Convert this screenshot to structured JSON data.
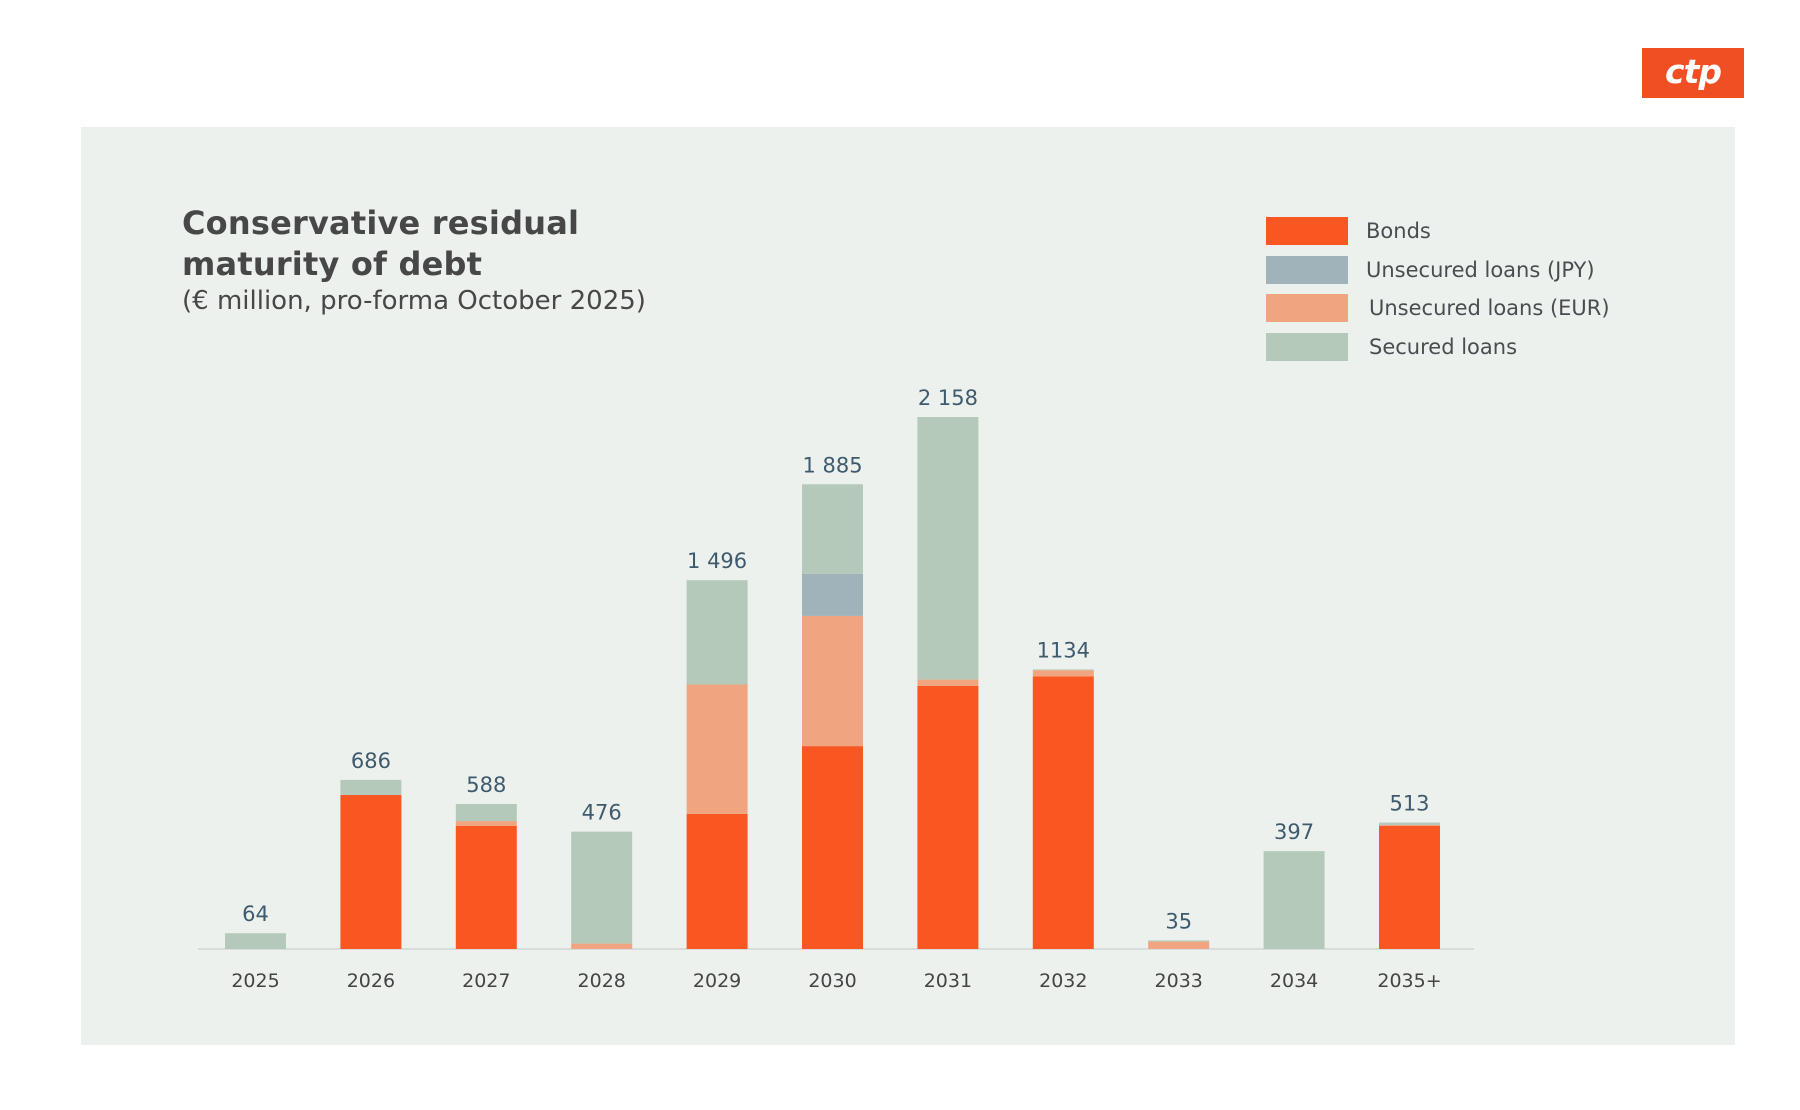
{
  "logo": {
    "text": "ctp",
    "color": "#F04E23"
  },
  "chart_data": {
    "type": "bar",
    "stacked": true,
    "title": "Conservative residual maturity of debt",
    "title_lines": [
      "Conservative residual",
      "maturity of debt"
    ],
    "subtitle": "(€ million, pro-forma October 2025)",
    "xlabel": "",
    "ylabel": "",
    "ylim": [
      0,
      2200
    ],
    "grid": false,
    "legend_position": "top-right",
    "categories": [
      "2025",
      "2026",
      "2027",
      "2028",
      "2029",
      "2030",
      "2031",
      "2032",
      "2033",
      "2034",
      "2035+"
    ],
    "totals_labels": [
      "64",
      "686",
      "588",
      "476",
      "1 496",
      "1 885",
      "2 158",
      "1134",
      "35",
      "397",
      "513"
    ],
    "totals": [
      64,
      686,
      588,
      476,
      1496,
      1885,
      2158,
      1134,
      35,
      397,
      513
    ],
    "series": [
      {
        "name": "Bonds",
        "color": "#F95721",
        "values": [
          0,
          625,
          499,
          0,
          548,
          823,
          1067,
          1106,
          0,
          0,
          499
        ]
      },
      {
        "name": "Unsecured loans (EUR)",
        "color": "#F0A47F",
        "values": [
          0,
          0,
          20,
          22,
          525,
          528,
          26,
          25,
          30,
          0,
          4
        ]
      },
      {
        "name": "Unsecured loans (JPY)",
        "color": "#A1B3BA",
        "values": [
          0,
          0,
          0,
          0,
          0,
          171,
          0,
          0,
          0,
          0,
          0
        ]
      },
      {
        "name": "Secured loans",
        "color": "#B4C9B9",
        "values": [
          64,
          61,
          69,
          454,
          423,
          363,
          1065,
          3,
          5,
          397,
          10
        ]
      }
    ],
    "legend": [
      {
        "name": "Bonds",
        "color": "#F95721"
      },
      {
        "name": "Unsecured loans (JPY)",
        "color": "#A1B3BA"
      },
      {
        "name": "Unsecured loans (EUR)",
        "color": "#F0A47F"
      },
      {
        "name": "Secured loans",
        "color": "#B4C9B9"
      }
    ]
  }
}
